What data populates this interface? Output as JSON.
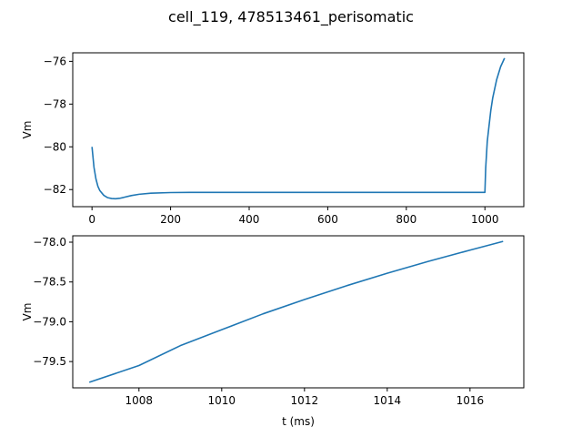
{
  "title": "cell_119, 478513461_perisomatic",
  "line_color": "#1f77b4",
  "chart_data": [
    {
      "type": "line",
      "ylabel": "Vm",
      "xlabel": "",
      "xlim": [
        -49,
        1099
      ],
      "ylim": [
        -82.8,
        -75.6
      ],
      "xticks": [
        0,
        200,
        400,
        600,
        800,
        1000
      ],
      "yticks": [
        -82,
        -80,
        -78,
        -76
      ],
      "xticklabels": [
        "0",
        "200",
        "400",
        "600",
        "800",
        "1000"
      ],
      "yticklabels": [
        "−82",
        "−80",
        "−78",
        "−76"
      ],
      "grid": false,
      "series": [
        {
          "x": [
            0,
            5,
            10,
            15,
            20,
            30,
            40,
            50,
            60,
            70,
            80,
            100,
            120,
            150,
            200,
            250,
            300,
            400,
            600,
            800,
            995,
            1000,
            1002,
            1006,
            1010,
            1015,
            1020,
            1030,
            1040,
            1050
          ],
          "y": [
            -80.0,
            -80.95,
            -81.5,
            -81.85,
            -82.05,
            -82.27,
            -82.38,
            -82.42,
            -82.43,
            -82.41,
            -82.37,
            -82.28,
            -82.22,
            -82.17,
            -82.14,
            -82.13,
            -82.13,
            -82.13,
            -82.13,
            -82.13,
            -82.13,
            -82.13,
            -81.0,
            -79.75,
            -79.1,
            -78.3,
            -77.7,
            -76.85,
            -76.25,
            -75.85
          ]
        }
      ]
    },
    {
      "type": "line",
      "ylabel": "Vm",
      "xlabel": "t (ms)",
      "xlim": [
        1006.4,
        1017.3
      ],
      "ylim": [
        -79.83,
        -77.92
      ],
      "xticks": [
        1008,
        1010,
        1012,
        1014,
        1016
      ],
      "yticks": [
        -79.5,
        -79.0,
        -78.5,
        -78.0
      ],
      "xticklabels": [
        "1008",
        "1010",
        "1012",
        "1014",
        "1016"
      ],
      "yticklabels": [
        "−79.5",
        "−79.0",
        "−78.5",
        "−78.0"
      ],
      "grid": false,
      "series": [
        {
          "x": [
            1006.8,
            1008,
            1009,
            1010,
            1011,
            1012,
            1013,
            1014,
            1015,
            1016,
            1016.8
          ],
          "y": [
            -79.76,
            -79.55,
            -79.3,
            -79.1,
            -78.9,
            -78.72,
            -78.55,
            -78.39,
            -78.24,
            -78.1,
            -77.99
          ]
        }
      ]
    }
  ]
}
